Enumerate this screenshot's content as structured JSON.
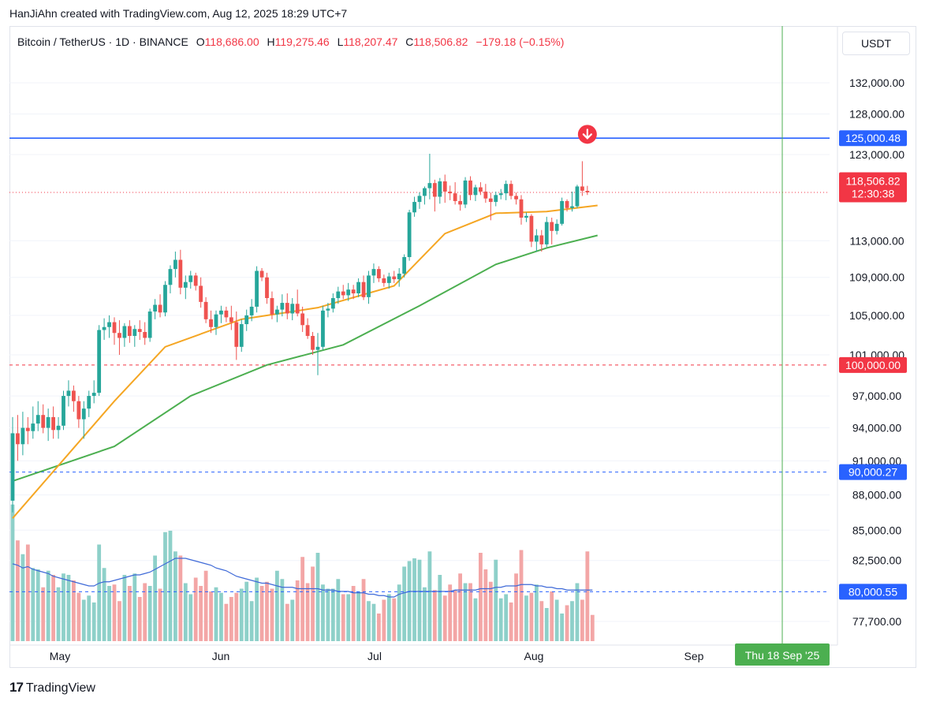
{
  "caption": "HanJiAhn created with TradingView.com, Aug 12, 2025 18:29 UTC+7",
  "legend": {
    "symbol": "Bitcoin / TetherUS · 1D · BINANCE",
    "open_label": "O",
    "open": "118,686.00",
    "high_label": "H",
    "high": "119,275.46",
    "low_label": "L",
    "low": "118,207.47",
    "close_label": "C",
    "close": "118,506.82",
    "change": "−179.18 (−0.15%)"
  },
  "currency": "USDT",
  "footer": {
    "logo": "17",
    "brand": "TradingView"
  },
  "colors": {
    "up": "#26a69a",
    "down": "#ef5350",
    "up_volume": "#8ed0c9",
    "down_volume": "#f3a6a6",
    "ma_fast": "#f5a623",
    "ma_slow": "#4caf50",
    "vol_ma": "#3f6ad8",
    "blue_level": "#2962ff",
    "red_level": "#f23645",
    "axis_text": "#131722",
    "grid": "#f0f3fa",
    "marker_line": "#4caf50"
  },
  "chart_data": {
    "type": "candlestick",
    "x_axis": {
      "labels": [
        "May",
        "Jun",
        "Jul",
        "Aug",
        "Sep"
      ],
      "cursor_label": "Thu 18 Sep '25"
    },
    "y_axis": {
      "ticks": [
        "132,000.00",
        "128,000.00",
        "123,000.00",
        "113,000.00",
        "109,000.00",
        "105,000.00",
        "101,000.00",
        "97,000.00",
        "94,000.00",
        "91,000.00",
        "88,000.00",
        "85,000.00",
        "82,500.00",
        "77,700.00"
      ],
      "range": [
        76500,
        134500
      ],
      "scale": "log"
    },
    "levels": [
      {
        "value": 125000.48,
        "label": "125,000.48",
        "style": "solid",
        "color": "blue"
      },
      {
        "value": 100000.0,
        "label": "100,000.00",
        "style": "dashed",
        "color": "red"
      },
      {
        "value": 90000.27,
        "label": "90,000.27",
        "style": "dashed",
        "color": "blue"
      },
      {
        "value": 80000.55,
        "label": "80,000.55",
        "style": "dashed",
        "color": "blue"
      }
    ],
    "last_price": {
      "value": 118506.82,
      "label": "118,506.82",
      "countdown": "12:30:38"
    },
    "candles": [
      {
        "o": 87500,
        "h": 95000,
        "l": 86500,
        "c": 93500
      },
      {
        "o": 93500,
        "h": 95200,
        "l": 91000,
        "c": 92500
      },
      {
        "o": 92500,
        "h": 95500,
        "l": 91500,
        "c": 94000
      },
      {
        "o": 94000,
        "h": 95000,
        "l": 92500,
        "c": 93700
      },
      {
        "o": 93700,
        "h": 96000,
        "l": 93000,
        "c": 94400
      },
      {
        "o": 94400,
        "h": 96500,
        "l": 93700,
        "c": 95200
      },
      {
        "o": 95200,
        "h": 96200,
        "l": 93500,
        "c": 94000
      },
      {
        "o": 94000,
        "h": 95800,
        "l": 92800,
        "c": 95000
      },
      {
        "o": 95000,
        "h": 96000,
        "l": 93000,
        "c": 93800
      },
      {
        "o": 93800,
        "h": 95000,
        "l": 93000,
        "c": 94200
      },
      {
        "o": 94200,
        "h": 97500,
        "l": 93800,
        "c": 97000
      },
      {
        "o": 97000,
        "h": 98500,
        "l": 96000,
        "c": 97500
      },
      {
        "o": 97500,
        "h": 98000,
        "l": 95500,
        "c": 96500
      },
      {
        "o": 96500,
        "h": 97000,
        "l": 94000,
        "c": 94800
      },
      {
        "o": 94800,
        "h": 96500,
        "l": 93000,
        "c": 95800
      },
      {
        "o": 95800,
        "h": 97500,
        "l": 95000,
        "c": 97000
      },
      {
        "o": 97000,
        "h": 98500,
        "l": 96300,
        "c": 97300
      },
      {
        "o": 97300,
        "h": 104000,
        "l": 97000,
        "c": 103500
      },
      {
        "o": 103500,
        "h": 104700,
        "l": 102500,
        "c": 103800
      },
      {
        "o": 103800,
        "h": 105000,
        "l": 102700,
        "c": 104300
      },
      {
        "o": 104300,
        "h": 104800,
        "l": 102000,
        "c": 103200
      },
      {
        "o": 103200,
        "h": 104500,
        "l": 101000,
        "c": 102700
      },
      {
        "o": 102700,
        "h": 104200,
        "l": 101800,
        "c": 103900
      },
      {
        "o": 103900,
        "h": 104500,
        "l": 102200,
        "c": 102900
      },
      {
        "o": 102900,
        "h": 104000,
        "l": 101800,
        "c": 103600
      },
      {
        "o": 103600,
        "h": 104500,
        "l": 102500,
        "c": 103300
      },
      {
        "o": 103300,
        "h": 104300,
        "l": 102000,
        "c": 102700
      },
      {
        "o": 102700,
        "h": 105700,
        "l": 102300,
        "c": 105400
      },
      {
        "o": 105400,
        "h": 106700,
        "l": 104600,
        "c": 106100
      },
      {
        "o": 106100,
        "h": 107200,
        "l": 104800,
        "c": 105300
      },
      {
        "o": 105300,
        "h": 108600,
        "l": 104900,
        "c": 108200
      },
      {
        "o": 108200,
        "h": 110300,
        "l": 107300,
        "c": 109900
      },
      {
        "o": 109900,
        "h": 111800,
        "l": 109000,
        "c": 110900
      },
      {
        "o": 110900,
        "h": 112000,
        "l": 107200,
        "c": 107900
      },
      {
        "o": 107900,
        "h": 109200,
        "l": 106700,
        "c": 108500
      },
      {
        "o": 108500,
        "h": 109700,
        "l": 107800,
        "c": 109200
      },
      {
        "o": 109200,
        "h": 109500,
        "l": 107600,
        "c": 108100
      },
      {
        "o": 108100,
        "h": 109000,
        "l": 105800,
        "c": 106400
      },
      {
        "o": 106400,
        "h": 106900,
        "l": 104200,
        "c": 104600
      },
      {
        "o": 104600,
        "h": 105500,
        "l": 103200,
        "c": 103800
      },
      {
        "o": 103800,
        "h": 105500,
        "l": 103000,
        "c": 105100
      },
      {
        "o": 105100,
        "h": 106000,
        "l": 104200,
        "c": 105500
      },
      {
        "o": 105500,
        "h": 105900,
        "l": 104300,
        "c": 104800
      },
      {
        "o": 104800,
        "h": 106000,
        "l": 103500,
        "c": 104300
      },
      {
        "o": 104300,
        "h": 105400,
        "l": 100500,
        "c": 101800
      },
      {
        "o": 101800,
        "h": 104600,
        "l": 101300,
        "c": 104100
      },
      {
        "o": 104100,
        "h": 105600,
        "l": 103400,
        "c": 105000
      },
      {
        "o": 105000,
        "h": 106700,
        "l": 104400,
        "c": 105900
      },
      {
        "o": 105900,
        "h": 110200,
        "l": 105300,
        "c": 109700
      },
      {
        "o": 109700,
        "h": 110000,
        "l": 108600,
        "c": 109000
      },
      {
        "o": 109000,
        "h": 109500,
        "l": 106200,
        "c": 106800
      },
      {
        "o": 106800,
        "h": 107500,
        "l": 104600,
        "c": 105100
      },
      {
        "o": 105100,
        "h": 106000,
        "l": 104300,
        "c": 105600
      },
      {
        "o": 105600,
        "h": 107200,
        "l": 104900,
        "c": 106300
      },
      {
        "o": 106300,
        "h": 107300,
        "l": 104600,
        "c": 105200
      },
      {
        "o": 105200,
        "h": 106800,
        "l": 104500,
        "c": 106200
      },
      {
        "o": 106200,
        "h": 107700,
        "l": 104900,
        "c": 105200
      },
      {
        "o": 105200,
        "h": 105900,
        "l": 103300,
        "c": 104000
      },
      {
        "o": 104000,
        "h": 104700,
        "l": 102600,
        "c": 102900
      },
      {
        "o": 102900,
        "h": 103300,
        "l": 101000,
        "c": 101500
      },
      {
        "o": 101500,
        "h": 103200,
        "l": 99000,
        "c": 101800
      },
      {
        "o": 101800,
        "h": 106000,
        "l": 101500,
        "c": 105500
      },
      {
        "o": 105500,
        "h": 106300,
        "l": 104800,
        "c": 105700
      },
      {
        "o": 105700,
        "h": 107300,
        "l": 105300,
        "c": 106800
      },
      {
        "o": 106800,
        "h": 108000,
        "l": 106200,
        "c": 107500
      },
      {
        "o": 107500,
        "h": 108200,
        "l": 106700,
        "c": 107100
      },
      {
        "o": 107100,
        "h": 108400,
        "l": 106500,
        "c": 107700
      },
      {
        "o": 107700,
        "h": 108200,
        "l": 106700,
        "c": 107300
      },
      {
        "o": 107300,
        "h": 108900,
        "l": 106900,
        "c": 108500
      },
      {
        "o": 108500,
        "h": 109200,
        "l": 106600,
        "c": 106900
      },
      {
        "o": 106900,
        "h": 109700,
        "l": 106200,
        "c": 109200
      },
      {
        "o": 109200,
        "h": 110500,
        "l": 108400,
        "c": 109900
      },
      {
        "o": 109900,
        "h": 110200,
        "l": 108500,
        "c": 108900
      },
      {
        "o": 108900,
        "h": 109300,
        "l": 108000,
        "c": 108400
      },
      {
        "o": 108400,
        "h": 109500,
        "l": 107800,
        "c": 109100
      },
      {
        "o": 109100,
        "h": 109700,
        "l": 108400,
        "c": 108800
      },
      {
        "o": 108800,
        "h": 110000,
        "l": 108000,
        "c": 109400
      },
      {
        "o": 109400,
        "h": 111500,
        "l": 109000,
        "c": 111200
      },
      {
        "o": 111200,
        "h": 116500,
        "l": 110800,
        "c": 116200
      },
      {
        "o": 116200,
        "h": 118000,
        "l": 115700,
        "c": 117400
      },
      {
        "o": 117400,
        "h": 118500,
        "l": 116600,
        "c": 118100
      },
      {
        "o": 118100,
        "h": 119200,
        "l": 117100,
        "c": 119000
      },
      {
        "o": 119000,
        "h": 123100,
        "l": 117700,
        "c": 119600
      },
      {
        "o": 119600,
        "h": 120000,
        "l": 116300,
        "c": 118000
      },
      {
        "o": 118000,
        "h": 120200,
        "l": 117200,
        "c": 119800
      },
      {
        "o": 119800,
        "h": 120600,
        "l": 117300,
        "c": 118600
      },
      {
        "o": 118600,
        "h": 119300,
        "l": 117600,
        "c": 118400
      },
      {
        "o": 118400,
        "h": 119700,
        "l": 117100,
        "c": 117500
      },
      {
        "o": 117500,
        "h": 118200,
        "l": 116400,
        "c": 117100
      },
      {
        "o": 117100,
        "h": 120300,
        "l": 116700,
        "c": 119900
      },
      {
        "o": 119900,
        "h": 120400,
        "l": 117600,
        "c": 118200
      },
      {
        "o": 118200,
        "h": 119400,
        "l": 117500,
        "c": 119100
      },
      {
        "o": 119100,
        "h": 119700,
        "l": 118200,
        "c": 118600
      },
      {
        "o": 118600,
        "h": 119500,
        "l": 117300,
        "c": 117800
      },
      {
        "o": 117800,
        "h": 118500,
        "l": 115300,
        "c": 117400
      },
      {
        "o": 117400,
        "h": 118600,
        "l": 116900,
        "c": 118200
      },
      {
        "o": 118200,
        "h": 118900,
        "l": 117700,
        "c": 118400
      },
      {
        "o": 118400,
        "h": 119900,
        "l": 117600,
        "c": 119500
      },
      {
        "o": 119500,
        "h": 119900,
        "l": 117700,
        "c": 118100
      },
      {
        "o": 118100,
        "h": 118500,
        "l": 117100,
        "c": 117700
      },
      {
        "o": 117700,
        "h": 118200,
        "l": 114800,
        "c": 115600
      },
      {
        "o": 115600,
        "h": 116200,
        "l": 115100,
        "c": 115800
      },
      {
        "o": 115800,
        "h": 116000,
        "l": 112300,
        "c": 112900
      },
      {
        "o": 112900,
        "h": 114300,
        "l": 111800,
        "c": 113600
      },
      {
        "o": 113600,
        "h": 114200,
        "l": 111800,
        "c": 112600
      },
      {
        "o": 112600,
        "h": 115700,
        "l": 112300,
        "c": 115100
      },
      {
        "o": 115100,
        "h": 115600,
        "l": 112600,
        "c": 114100
      },
      {
        "o": 114100,
        "h": 115400,
        "l": 113700,
        "c": 114900
      },
      {
        "o": 114900,
        "h": 117900,
        "l": 114700,
        "c": 117500
      },
      {
        "o": 117500,
        "h": 117700,
        "l": 116300,
        "c": 116700
      },
      {
        "o": 116700,
        "h": 118600,
        "l": 116300,
        "c": 116900
      },
      {
        "o": 116900,
        "h": 119400,
        "l": 116700,
        "c": 119200
      },
      {
        "o": 119200,
        "h": 122200,
        "l": 118100,
        "c": 118700
      },
      {
        "o": 118686,
        "h": 119275,
        "l": 118207,
        "c": 118507
      }
    ],
    "volume": [
      99,
      73,
      63,
      70,
      53,
      52,
      39,
      51,
      48,
      39,
      49,
      48,
      44,
      35,
      30,
      33,
      28,
      70,
      53,
      40,
      41,
      29,
      48,
      40,
      49,
      32,
      42,
      40,
      62,
      38,
      79,
      80,
      65,
      62,
      42,
      34,
      46,
      40,
      51,
      36,
      39,
      35,
      27,
      32,
      35,
      38,
      43,
      29,
      46,
      40,
      43,
      38,
      51,
      45,
      27,
      30,
      44,
      61,
      42,
      54,
      64,
      41,
      38,
      38,
      45,
      34,
      34,
      40,
      36,
      45,
      29,
      27,
      20,
      30,
      34,
      31,
      41,
      54,
      58,
      60,
      59,
      39,
      65,
      37,
      48,
      33,
      41,
      37,
      49,
      42,
      42,
      31,
      64,
      52,
      43,
      59,
      31,
      34,
      28,
      49,
      66,
      33,
      35,
      41,
      29,
      24,
      36,
      30,
      20,
      26,
      29,
      42,
      30,
      65,
      19
    ],
    "ma_fast": [
      [
        0,
        86000
      ],
      [
        20,
        96500
      ],
      [
        30,
        101800
      ],
      [
        45,
        104600
      ],
      [
        60,
        105800
      ],
      [
        75,
        108100
      ],
      [
        85,
        113800
      ],
      [
        95,
        116100
      ],
      [
        105,
        116300
      ],
      [
        115,
        117000
      ]
    ],
    "ma_slow": [
      [
        0,
        89200
      ],
      [
        20,
        92300
      ],
      [
        35,
        97000
      ],
      [
        50,
        100000
      ],
      [
        65,
        102000
      ],
      [
        80,
        106000
      ],
      [
        95,
        110400
      ],
      [
        105,
        112200
      ],
      [
        115,
        113600
      ]
    ],
    "vol_ma": [
      56,
      55,
      53,
      54,
      52,
      51,
      50,
      49,
      47,
      46,
      45,
      44,
      43,
      42,
      41,
      40,
      40,
      42,
      43,
      43,
      44,
      45,
      46,
      47,
      48,
      48,
      49,
      50,
      52,
      54,
      56,
      58,
      60,
      60,
      60,
      59,
      58,
      57,
      56,
      55,
      53,
      52,
      51,
      49,
      47,
      46,
      45,
      44,
      43,
      42,
      42,
      41,
      40,
      39,
      39,
      39,
      38,
      38,
      38,
      38,
      38,
      37,
      37,
      37,
      36,
      36,
      36,
      35,
      35,
      35,
      34,
      34,
      33,
      33,
      32,
      32,
      34,
      35,
      36,
      36,
      36,
      36,
      36,
      36,
      36,
      36,
      36,
      37,
      37,
      37,
      37,
      37,
      38,
      38,
      38,
      39,
      39,
      40,
      40,
      40,
      41,
      41,
      41,
      40,
      40,
      39,
      39,
      38,
      38,
      37,
      37,
      37,
      37,
      37,
      37
    ],
    "marker": {
      "direction": "down",
      "index": 113,
      "value": 124700
    },
    "cursor": {
      "date": "Thu 18 Sep '25"
    }
  }
}
